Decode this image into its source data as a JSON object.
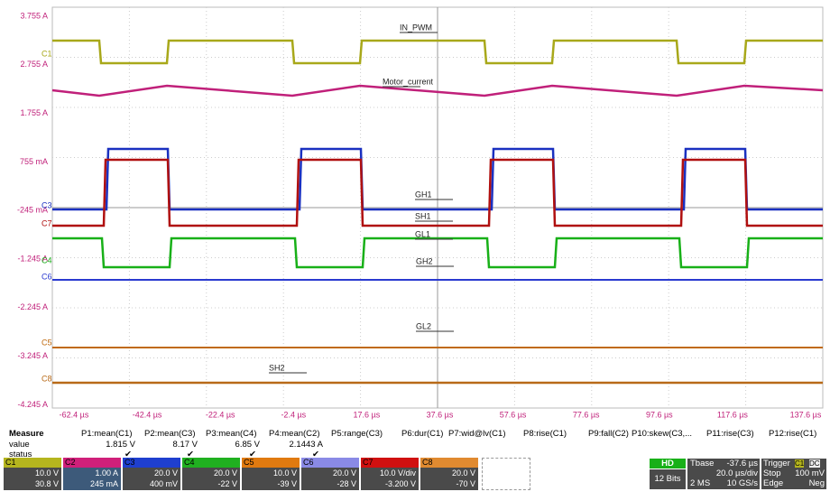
{
  "y_axis_labels": [
    "3.755 A",
    "2.755 A",
    "1.755 A",
    "755 mA",
    "-245 mA",
    "-1.245 A",
    "-2.245 A",
    "-3.245 A",
    "-4.245 A"
  ],
  "x_axis_labels": [
    "-62.4 µs",
    "-42.4 µs",
    "-22.4 µs",
    "-2.4 µs",
    "17.6 µs",
    "37.6 µs",
    "57.6 µs",
    "77.6 µs",
    "97.6 µs",
    "117.6 µs",
    "137.6 µs"
  ],
  "trace_labels": [
    "IN_PWM",
    "Motor_current",
    "GH1",
    "SH1",
    "GL1",
    "GH2",
    "GL2",
    "SH2"
  ],
  "channel_markers": [
    "C1",
    "C3",
    "C7",
    "C4",
    "C6",
    "C5",
    "C8"
  ],
  "measure": {
    "title": "Measure",
    "params": [
      "P1:mean(C1)",
      "P2:mean(C3)",
      "P3:mean(C4)",
      "P4:mean(C2)",
      "P5:range(C3)",
      "P6:dur(C1)",
      "P7:wid@lv(C1)",
      "P8:rise(C1)",
      "P9:fall(C2)",
      "P10:skew(C3,...",
      "P11:rise(C3)",
      "P12:rise(C1)"
    ],
    "row_labels": [
      "value",
      "status"
    ],
    "values": [
      "1.815 V",
      "8.17 V",
      "6.85 V",
      "2.1443 A"
    ],
    "status": [
      "✔",
      "✔",
      "✔",
      "✔"
    ]
  },
  "channels": [
    {
      "name": "C1",
      "scale": "10.0 V",
      "offset": "30.8 V"
    },
    {
      "name": "C2",
      "scale": "1.00 A",
      "offset": "245 mA"
    },
    {
      "name": "C3",
      "scale": "20.0 V",
      "offset": "400 mV"
    },
    {
      "name": "C4",
      "scale": "20.0 V",
      "offset": "-22 V"
    },
    {
      "name": "C5",
      "scale": "10.0 V",
      "offset": "-39 V"
    },
    {
      "name": "C6",
      "scale": "20.0 V",
      "offset": "-28 V"
    },
    {
      "name": "C7",
      "scale": "10.0 V/div",
      "offset": "-3.200 V"
    },
    {
      "name": "C8",
      "scale": "20.0 V",
      "offset": "-70 V"
    }
  ],
  "acquisition": {
    "mode": "HD",
    "bits": "12 Bits",
    "tbase_label": "Tbase",
    "tbase": "-37.6 µs",
    "timediv": "20.0 µs/div",
    "samples": "2 MS",
    "rate": "10 GS/s",
    "trigger_label": "Trigger",
    "trigger_channel": "C1",
    "trigger_coupling": "DC",
    "trigger_state": "Stop",
    "trigger_level": "100 mV",
    "trigger_type": "Edge",
    "trigger_slope": "Neg"
  }
}
